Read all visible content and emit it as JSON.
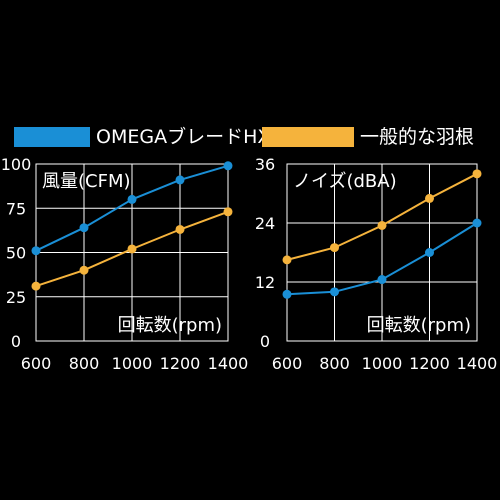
{
  "legend": [
    {
      "label": "OMEGAブレードHX",
      "color": "#1a8fd6"
    },
    {
      "label": "一般的な羽根",
      "color": "#f5b33c"
    }
  ],
  "chart_data": [
    {
      "type": "line",
      "title": "風量(CFM)",
      "xlabel": "回転数(rpm)",
      "ylabel": "",
      "x": [
        600,
        800,
        1000,
        1200,
        1400
      ],
      "x_ticks": [
        "600",
        "800",
        "1000",
        "1200",
        "1400"
      ],
      "y_ticks": [
        "0",
        "25",
        "50",
        "75",
        "100"
      ],
      "ylim": [
        0,
        100
      ],
      "grid": true,
      "series": [
        {
          "name": "OMEGAブレードHX",
          "color": "#1a8fd6",
          "values": [
            51,
            64,
            80,
            91,
            99
          ]
        },
        {
          "name": "一般的な羽根",
          "color": "#f5b33c",
          "values": [
            31,
            40,
            52,
            63,
            73
          ]
        }
      ]
    },
    {
      "type": "line",
      "title": "ノイズ(dBA)",
      "xlabel": "回転数(rpm)",
      "ylabel": "",
      "x": [
        600,
        800,
        1000,
        1200,
        1400
      ],
      "x_ticks": [
        "600",
        "800",
        "1000",
        "1200",
        "1400"
      ],
      "y_ticks": [
        "0",
        "12",
        "24",
        "36"
      ],
      "ylim": [
        0,
        36
      ],
      "grid": true,
      "series": [
        {
          "name": "OMEGAブレードHX",
          "color": "#1a8fd6",
          "values": [
            9.5,
            10,
            12.5,
            18,
            24
          ]
        },
        {
          "name": "一般的な羽根",
          "color": "#f5b33c",
          "values": [
            16.5,
            19,
            23.5,
            29,
            34
          ]
        }
      ]
    }
  ]
}
